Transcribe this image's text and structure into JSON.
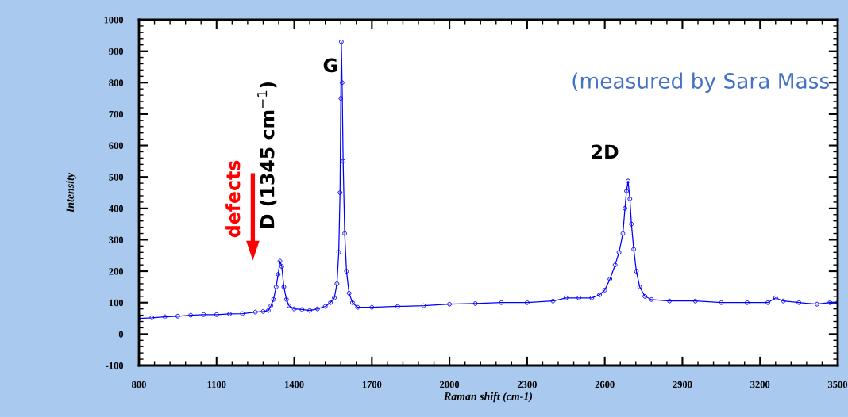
{
  "chart_data": {
    "type": "line",
    "xlabel": "Raman shift (cm-1)",
    "ylabel": "Intensity",
    "xlim": [
      800,
      3500
    ],
    "xticks": [
      800,
      1100,
      1400,
      1700,
      2000,
      2300,
      2600,
      2900,
      3200,
      3500
    ],
    "ylim": [
      -100,
      1000
    ],
    "yticks": [
      -100,
      0,
      100,
      200,
      300,
      400,
      500,
      600,
      700,
      800,
      900,
      1000
    ],
    "marker": "circle",
    "line_style": "solid",
    "grid": false,
    "legend": false,
    "series": [
      {
        "color": "#0000ff",
        "x": [
          800,
          850,
          900,
          950,
          1000,
          1050,
          1100,
          1150,
          1200,
          1250,
          1280,
          1300,
          1310,
          1320,
          1330,
          1338,
          1345,
          1352,
          1360,
          1370,
          1380,
          1400,
          1430,
          1460,
          1490,
          1520,
          1540,
          1555,
          1565,
          1572,
          1577,
          1580,
          1582,
          1585,
          1589,
          1595,
          1602,
          1612,
          1625,
          1645,
          1700,
          1800,
          1900,
          2000,
          2100,
          2200,
          2300,
          2400,
          2450,
          2500,
          2550,
          2580,
          2600,
          2620,
          2640,
          2655,
          2670,
          2678,
          2684,
          2690,
          2697,
          2703,
          2712,
          2722,
          2735,
          2755,
          2780,
          2850,
          2950,
          3050,
          3150,
          3230,
          3260,
          3290,
          3350,
          3420,
          3470,
          3500
        ],
        "values": [
          50,
          52,
          55,
          57,
          60,
          62,
          62,
          64,
          65,
          70,
          72,
          75,
          90,
          110,
          150,
          190,
          232,
          215,
          150,
          110,
          90,
          80,
          78,
          75,
          80,
          88,
          100,
          115,
          160,
          260,
          450,
          750,
          930,
          800,
          550,
          320,
          200,
          130,
          100,
          85,
          85,
          88,
          90,
          95,
          97,
          100,
          100,
          105,
          115,
          115,
          115,
          125,
          140,
          175,
          220,
          260,
          320,
          400,
          455,
          487,
          430,
          350,
          270,
          200,
          150,
          120,
          110,
          105,
          105,
          100,
          100,
          100,
          115,
          105,
          100,
          95,
          100,
          100
        ]
      }
    ],
    "annotations": [
      "G",
      "2D",
      "D (1345 cm$^{−1}$)",
      "defects",
      "(measured by Sara Mass"
    ]
  }
}
